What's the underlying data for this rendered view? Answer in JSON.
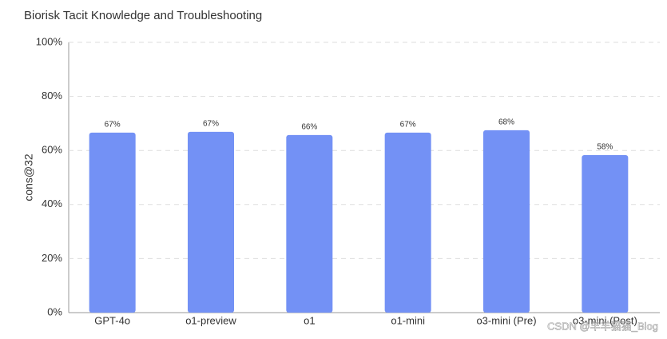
{
  "chart_data": {
    "type": "bar",
    "title": "Biorisk Tacit Knowledge and Troubleshooting",
    "y_label": "cons@32",
    "categories": [
      "GPT-4o",
      "o1-preview",
      "o1",
      "o1-mini",
      "o3-mini (Pre)",
      "o3-mini (Post)"
    ],
    "values": [
      66.6,
      66.9,
      65.7,
      66.6,
      67.5,
      58.3
    ],
    "value_labels": [
      "67%",
      "67%",
      "66%",
      "67%",
      "68%",
      "58%"
    ],
    "color": "#7391f5",
    "ylim": [
      0,
      100
    ],
    "yticks": [
      {
        "value": 0,
        "label": "0%"
      },
      {
        "value": 20,
        "label": "20%"
      },
      {
        "value": 40,
        "label": "40%"
      },
      {
        "value": 60,
        "label": "60%"
      },
      {
        "value": 80,
        "label": "80%"
      },
      {
        "value": 100,
        "label": "100%"
      }
    ],
    "grid": true,
    "watermark": "CSDN @羊羊猫猫_Blog"
  }
}
